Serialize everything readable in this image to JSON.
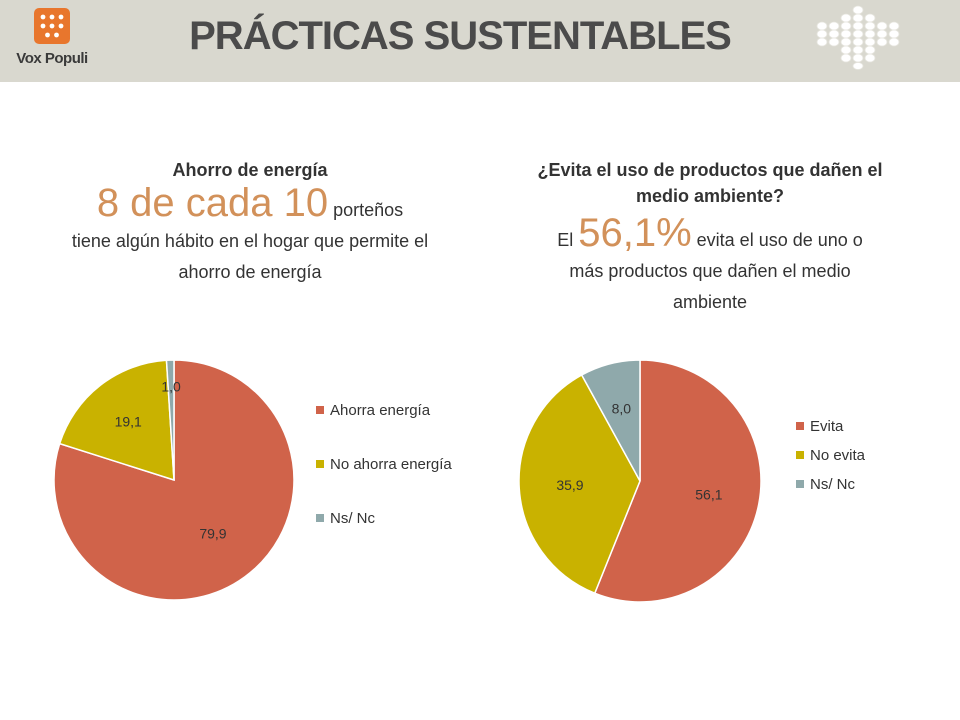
{
  "header": {
    "brand": "Vox Populi",
    "title": "PRÁCTICAS SUSTENTABLES",
    "brand_color": "#e8762d",
    "background": "#d9d8cf"
  },
  "left_panel": {
    "heading": "Ahorro de energía",
    "highlight": "8 de cada 10",
    "text_after_highlight": " porteños",
    "text_rest": "tiene algún hábito en el hogar que permite el ahorro de energía"
  },
  "right_panel": {
    "heading": "¿Evita el uso de productos que dañen el medio ambiente?",
    "text_before_highlight": "El ",
    "highlight": "56,1%",
    "text_after_highlight": " evita el uso de uno o",
    "text_rest": "más productos que dañen el medio ambiente"
  },
  "chart_data": [
    {
      "type": "pie",
      "categories": [
        "Ahorra energía",
        "No ahorra energía",
        "Ns/ Nc"
      ],
      "values": [
        79.9,
        19.1,
        1.0
      ],
      "labels": [
        "79,9",
        "19,1",
        "1,0"
      ],
      "colors": [
        "#d0634a",
        "#c9b200",
        "#8fa9ab"
      ],
      "legend": "right"
    },
    {
      "type": "pie",
      "categories": [
        "Evita",
        "No evita",
        "Ns/ Nc"
      ],
      "values": [
        56.1,
        35.9,
        8.0
      ],
      "labels": [
        "56,1",
        "35,9",
        "8,0"
      ],
      "colors": [
        "#d0634a",
        "#c9b200",
        "#8fa9ab"
      ],
      "legend": "right"
    }
  ]
}
